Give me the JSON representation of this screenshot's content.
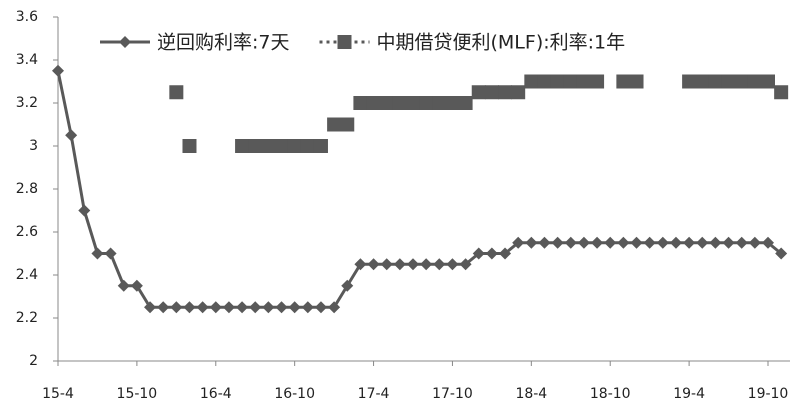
{
  "chart_data": {
    "type": "line",
    "categories": [
      "15-4",
      null,
      null,
      null,
      null,
      null,
      "15-10",
      null,
      null,
      null,
      null,
      null,
      "16-4",
      null,
      null,
      null,
      null,
      null,
      "16-10",
      null,
      null,
      null,
      null,
      null,
      "17-4",
      null,
      null,
      null,
      null,
      null,
      "17-10",
      null,
      null,
      null,
      null,
      null,
      "18-4",
      null,
      null,
      null,
      null,
      null,
      "18-10",
      null,
      null,
      null,
      null,
      null,
      "19-4",
      null,
      null,
      null,
      null,
      null,
      "19-10",
      null
    ],
    "series": [
      {
        "name": "逆回购利率:7天",
        "color": "#595959",
        "marker": "diamond",
        "line": "solid",
        "values": [
          3.35,
          3.05,
          2.7,
          2.5,
          2.5,
          2.35,
          2.35,
          2.25,
          2.25,
          2.25,
          2.25,
          2.25,
          2.25,
          2.25,
          2.25,
          2.25,
          2.25,
          2.25,
          2.25,
          2.25,
          2.25,
          2.25,
          2.35,
          2.45,
          2.45,
          2.45,
          2.45,
          2.45,
          2.45,
          2.45,
          2.45,
          2.45,
          2.5,
          2.5,
          2.5,
          2.55,
          2.55,
          2.55,
          2.55,
          2.55,
          2.55,
          2.55,
          2.55,
          2.55,
          2.55,
          2.55,
          2.55,
          2.55,
          2.55,
          2.55,
          2.55,
          2.55,
          2.55,
          2.55,
          2.55,
          2.5
        ]
      },
      {
        "name": "中期借贷便利(MLF):利率:1年",
        "color": "#595959",
        "marker": "square",
        "line": "none",
        "values": [
          null,
          null,
          null,
          null,
          null,
          null,
          null,
          null,
          null,
          3.25,
          3.0,
          null,
          null,
          null,
          3.0,
          3.0,
          3.0,
          3.0,
          3.0,
          3.0,
          3.0,
          3.1,
          3.1,
          3.2,
          3.2,
          3.2,
          3.2,
          3.2,
          3.2,
          3.2,
          3.2,
          3.2,
          3.25,
          3.25,
          3.25,
          3.25,
          3.3,
          3.3,
          3.3,
          3.3,
          3.3,
          3.3,
          null,
          3.3,
          3.3,
          null,
          null,
          null,
          3.3,
          3.3,
          3.3,
          3.3,
          3.3,
          3.3,
          3.3,
          3.25
        ]
      }
    ],
    "ylim": [
      2,
      3.6
    ],
    "yticks": [
      2,
      2.2,
      2.4,
      2.6,
      2.8,
      3,
      3.2,
      3.4,
      3.6
    ]
  }
}
